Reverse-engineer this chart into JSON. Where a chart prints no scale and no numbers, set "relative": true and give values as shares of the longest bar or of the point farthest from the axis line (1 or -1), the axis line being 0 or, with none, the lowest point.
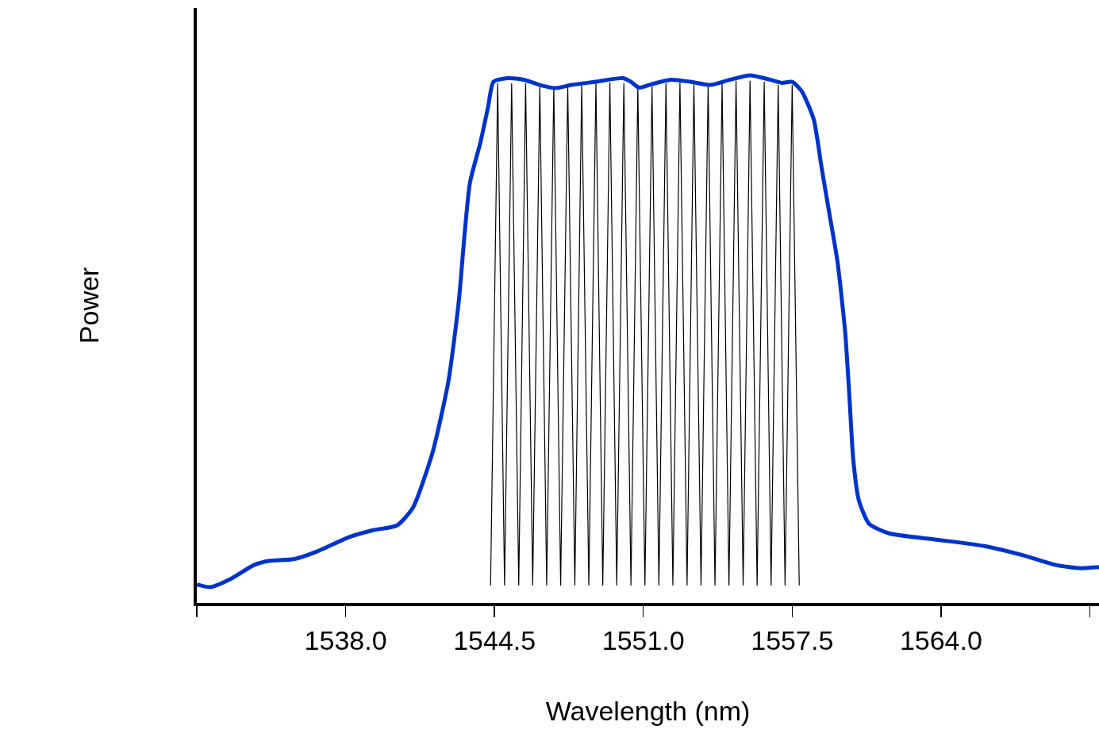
{
  "chart_data": {
    "type": "line",
    "relative": true,
    "xlabel": "Wavelength (nm)",
    "ylabel": "Power",
    "xlim": [
      1531.5,
      1570.9
    ],
    "xticks": [
      {
        "value": 1531.5,
        "label": null
      },
      {
        "value": 1538.0,
        "label": "1538.0"
      },
      {
        "value": 1544.5,
        "label": "1544.5"
      },
      {
        "value": 1551.0,
        "label": "1551.0"
      },
      {
        "value": 1557.5,
        "label": "1557.5"
      },
      {
        "value": 1564.0,
        "label": "1564.0"
      },
      {
        "value": 1570.5,
        "label": null
      }
    ],
    "grid": false,
    "marker": "none",
    "line_style": "solid",
    "series": [
      {
        "color": "#0033cc",
        "x": [
          1531.5,
          1532.09,
          1532.96,
          1534.0,
          1534.69,
          1535.73,
          1536.77,
          1538.16,
          1539.2,
          1540.24,
          1540.93,
          1541.8,
          1542.49,
          1542.94,
          1543.18,
          1543.43,
          1543.88,
          1544.22,
          1544.46,
          1545.09,
          1545.78,
          1546.48,
          1547.17,
          1547.86,
          1548.9,
          1550.12,
          1550.46,
          1550.81,
          1551.33,
          1552.2,
          1553.06,
          1553.93,
          1554.8,
          1555.66,
          1556.53,
          1557.05,
          1557.5,
          1557.92,
          1558.44,
          1558.78,
          1559.13,
          1559.48,
          1559.82,
          1560.0,
          1560.17,
          1560.41,
          1560.86,
          1561.73,
          1563.81,
          1565.89,
          1567.62,
          1569.01,
          1570.05,
          1570.9
        ],
        "values": [
          0.035,
          0.03,
          0.045,
          0.072,
          0.08,
          0.083,
          0.098,
          0.125,
          0.138,
          0.147,
          0.18,
          0.286,
          0.421,
          0.571,
          0.692,
          0.797,
          0.872,
          0.94,
          0.988,
          0.995,
          0.992,
          0.982,
          0.976,
          0.982,
          0.988,
          0.995,
          0.988,
          0.977,
          0.983,
          0.992,
          0.988,
          0.982,
          0.992,
          1.0,
          0.992,
          0.986,
          0.988,
          0.97,
          0.917,
          0.827,
          0.737,
          0.647,
          0.511,
          0.391,
          0.271,
          0.195,
          0.15,
          0.132,
          0.12,
          0.108,
          0.09,
          0.072,
          0.066,
          0.068
        ]
      },
      {
        "color": "#000000",
        "x": [
          1544.33,
          1544.64,
          1544.94,
          1545.25,
          1545.56,
          1545.86,
          1546.17,
          1546.48,
          1546.78,
          1547.09,
          1547.39,
          1547.7,
          1548.01,
          1548.31,
          1548.62,
          1548.93,
          1549.23,
          1549.54,
          1549.84,
          1550.15,
          1550.46,
          1550.76,
          1551.07,
          1551.38,
          1551.68,
          1551.99,
          1552.29,
          1552.6,
          1552.91,
          1553.21,
          1553.52,
          1553.83,
          1554.13,
          1554.44,
          1554.74,
          1555.05,
          1555.36,
          1555.66,
          1555.97,
          1556.28,
          1556.58,
          1556.89,
          1557.19,
          1557.5,
          1557.81
        ],
        "values": [
          0.033,
          0.985,
          0.033,
          0.985,
          0.033,
          0.985,
          0.033,
          0.98,
          0.033,
          0.978,
          0.033,
          0.98,
          0.033,
          0.983,
          0.033,
          0.985,
          0.033,
          0.987,
          0.033,
          0.985,
          0.033,
          0.978,
          0.033,
          0.98,
          0.033,
          0.985,
          0.033,
          0.987,
          0.033,
          0.985,
          0.033,
          0.982,
          0.033,
          0.985,
          0.033,
          0.99,
          0.033,
          0.99,
          0.033,
          0.988,
          0.033,
          0.982,
          0.033,
          0.982,
          0.033
        ]
      }
    ]
  }
}
